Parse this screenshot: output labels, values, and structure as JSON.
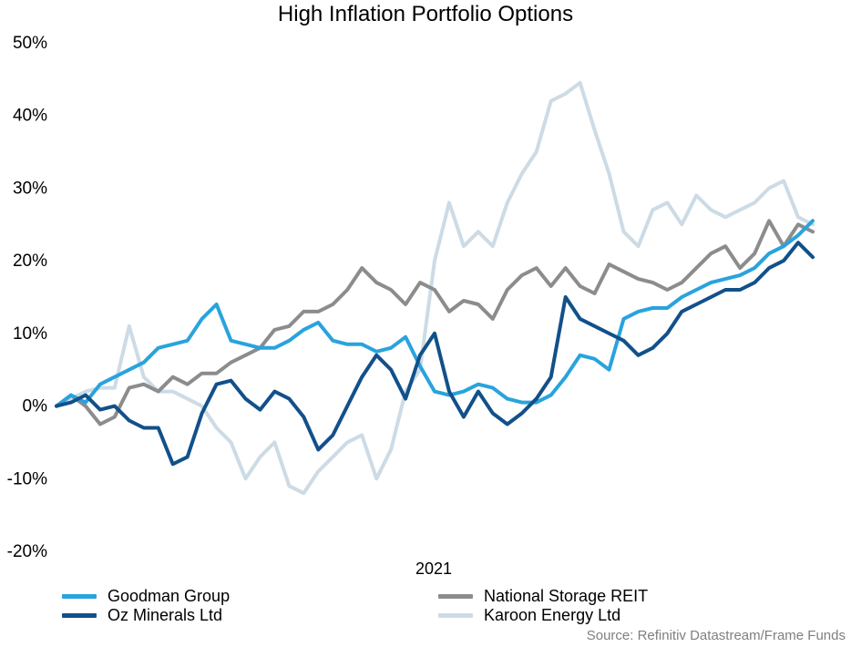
{
  "chart_data": {
    "type": "line",
    "title": "High Inflation Portfolio Options",
    "xlabel": "2021",
    "ylabel": "",
    "ylim": [
      -20,
      50
    ],
    "yticks": [
      50,
      40,
      30,
      20,
      10,
      0,
      -10,
      -20
    ],
    "ytick_labels": [
      "50%",
      "40%",
      "30%",
      "20%",
      "10%",
      "0%",
      "-10%",
      "-20%"
    ],
    "x": [
      0,
      4,
      8,
      12,
      16,
      20,
      24,
      28,
      32,
      36,
      40,
      44,
      48,
      52,
      56,
      60,
      64,
      68,
      72,
      76,
      80,
      84,
      88,
      92,
      96,
      100,
      104,
      108,
      112,
      116,
      120,
      124,
      128,
      132,
      136,
      140,
      144,
      148,
      152,
      156,
      160,
      164,
      168,
      172,
      176,
      180,
      184,
      188,
      192,
      196,
      200,
      204,
      208
    ],
    "series": [
      {
        "name": "Goodman Group",
        "color": "#29a3dd",
        "values": [
          0,
          1.5,
          0.5,
          3,
          4,
          5,
          6,
          8,
          8.5,
          9,
          12,
          14,
          9,
          8.5,
          8,
          8,
          9,
          10.5,
          11.5,
          9,
          8.5,
          8.5,
          7.5,
          8,
          9.5,
          5.5,
          2,
          1.5,
          2,
          3,
          2.5,
          1,
          0.5,
          0.5,
          1.5,
          4,
          7,
          6.5,
          5,
          12,
          13,
          13.5,
          13.5,
          15,
          16,
          17,
          17.5,
          18,
          19,
          21,
          22,
          23.5,
          25.5
        ]
      },
      {
        "name": "National Storage REIT",
        "color": "#8c8c8c",
        "values": [
          0,
          1.5,
          0,
          -2.5,
          -1.5,
          2.5,
          3,
          2,
          4,
          3,
          4.5,
          4.5,
          6,
          7,
          8,
          10.5,
          11,
          13,
          13,
          14,
          16,
          19,
          17,
          16,
          14,
          17,
          16,
          13,
          14.5,
          14,
          12,
          16,
          18,
          19,
          16.5,
          19,
          16.5,
          15.5,
          19.5,
          18.5,
          17.5,
          17,
          16,
          17,
          19,
          21,
          22,
          19,
          21,
          25.5,
          22,
          25,
          24
        ]
      },
      {
        "name": "Oz Minerals Ltd",
        "color": "#12508a",
        "values": [
          0,
          0.5,
          1.5,
          -0.5,
          0,
          -2,
          -3,
          -3,
          -8,
          -7,
          -1,
          3,
          3.5,
          1,
          -0.5,
          2,
          1,
          -1.5,
          -6,
          -4,
          0,
          4,
          7,
          5,
          1,
          7,
          10,
          2,
          -1.5,
          2,
          -1,
          -2.5,
          -1,
          1,
          4,
          15,
          12,
          11,
          10,
          9,
          7,
          8,
          10,
          13,
          14,
          15,
          16,
          16,
          17,
          19,
          20,
          22.5,
          20.5
        ]
      },
      {
        "name": "Karoon Energy Ltd",
        "color": "#ccdbe5",
        "values": [
          0,
          1,
          2,
          2.5,
          2.5,
          11,
          4,
          2,
          2,
          1,
          0,
          -3,
          -5,
          -10,
          -7,
          -5,
          -11,
          -12,
          -9,
          -7,
          -5,
          -4,
          -10,
          -6,
          2,
          5,
          20,
          28,
          22,
          24,
          22,
          28,
          32,
          35,
          42,
          43,
          44.5,
          38,
          32,
          24,
          22,
          27,
          28,
          25,
          29,
          27,
          26,
          27,
          28,
          30,
          31,
          26,
          25
        ]
      }
    ]
  },
  "legend": {
    "goodman": "Goodman Group",
    "national": "National Storage REIT",
    "oz": "Oz Minerals Ltd",
    "karoon": "Karoon Energy Ltd"
  },
  "source": "Source: Refinitiv Datastream/Frame Funds",
  "colors": {
    "goodman": "#29a3dd",
    "national": "#8c8c8c",
    "oz": "#12508a",
    "karoon": "#ccdbe5",
    "source_text": "#7f7f7f"
  }
}
